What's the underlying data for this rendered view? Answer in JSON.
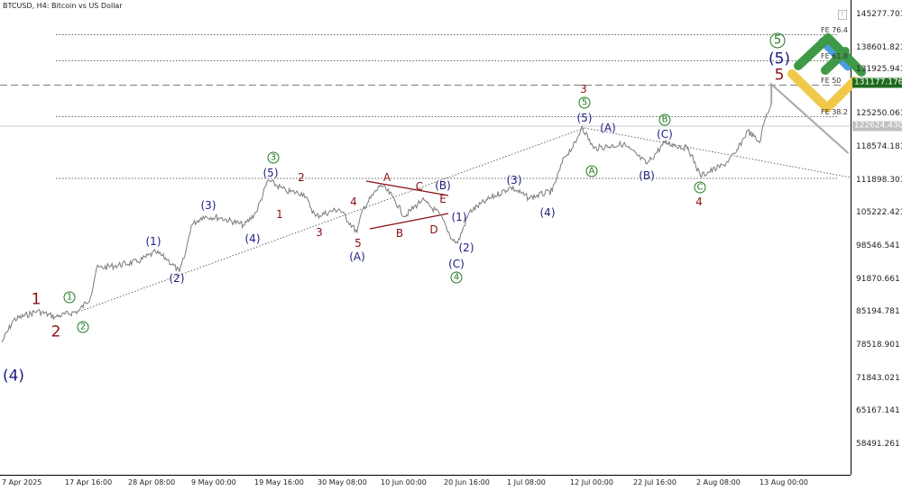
{
  "header": {
    "title": "BTCUSD, H4:  Bitcoin vs US Dollar",
    "toggle_label": "T"
  },
  "colors": {
    "price": "#7a7a7a",
    "wave_red": "#8b1010",
    "wave_navy": "#1c1c80",
    "wave_green": "#1f7a1f",
    "tag_green": "#1e6b1e",
    "tag_grey": "#c0c0c0",
    "logo_green": "#3f9a48",
    "logo_yellow": "#f0c94a",
    "logo_blue": "#4a9fe0"
  },
  "y_axis": {
    "labels": [
      "145277.701",
      "138601.821",
      "131925.941",
      "125250.061",
      "118574.181",
      "111898.301",
      "105222.421",
      "98546.541",
      "91870.661",
      "85194.781",
      "78518.901",
      "71843.021",
      "65167.141",
      "58491.261"
    ]
  },
  "x_axis": {
    "labels": [
      "7 Apr 2025",
      "17 Apr 16:00",
      "28 Apr 08:00",
      "9 May 00:00",
      "19 May 16:00",
      "30 May 08:00",
      "10 Jun 00:00",
      "20 Jun 16:00",
      "1 Jul 08:00",
      "12 Jul 00:00",
      "22 Jul 16:00",
      "2 Aug 08:00",
      "13 Aug 00:00"
    ]
  },
  "price_tags": {
    "fe50_level": "131177.176",
    "current": "122624.430"
  },
  "fib_levels": [
    {
      "label": "FE 76.4",
      "price": 141276
    },
    {
      "label": "FE 61.8",
      "price": 136000
    },
    {
      "label": "FE 50",
      "price": 131177.176
    },
    {
      "label": "FE 38.2",
      "price": 124722
    }
  ],
  "price_path": [
    [
      "2025-04-07",
      79100
    ],
    [
      "2025-04-09",
      83600
    ],
    [
      "2025-04-13",
      85400
    ],
    [
      "2025-04-16",
      84200
    ],
    [
      "2025-04-20",
      85400
    ],
    [
      "2025-04-22",
      88200
    ],
    [
      "2025-04-23",
      94000
    ],
    [
      "2025-04-26",
      94500
    ],
    [
      "2025-04-30",
      95400
    ],
    [
      "2025-05-03",
      97300
    ],
    [
      "2025-05-05",
      95800
    ],
    [
      "2025-05-07",
      93300
    ],
    [
      "2025-05-08",
      96900
    ],
    [
      "2025-05-09",
      102700
    ],
    [
      "2025-05-11",
      104500
    ],
    [
      "2025-05-14",
      104200
    ],
    [
      "2025-05-18",
      102700
    ],
    [
      "2025-05-20",
      105400
    ],
    [
      "2025-05-22",
      111800
    ],
    [
      "2025-05-25",
      109600
    ],
    [
      "2025-05-28",
      109100
    ],
    [
      "2025-05-30",
      104500
    ],
    [
      "2025-06-03",
      106000
    ],
    [
      "2025-06-06",
      101300
    ],
    [
      "2025-06-07",
      106000
    ],
    [
      "2025-06-10",
      110900
    ],
    [
      "2025-06-12",
      108500
    ],
    [
      "2025-06-14",
      104500
    ],
    [
      "2025-06-17",
      107800
    ],
    [
      "2025-06-20",
      104900
    ],
    [
      "2025-06-22",
      100000
    ],
    [
      "2025-06-23",
      99100
    ],
    [
      "2025-06-25",
      105400
    ],
    [
      "2025-06-28",
      107800
    ],
    [
      "2025-07-02",
      110400
    ],
    [
      "2025-07-05",
      108200
    ],
    [
      "2025-07-09",
      109600
    ],
    [
      "2025-07-11",
      116400
    ],
    [
      "2025-07-13",
      119400
    ],
    [
      "2025-07-14",
      122700
    ],
    [
      "2025-07-16",
      118200
    ],
    [
      "2025-07-21",
      119100
    ],
    [
      "2025-07-25",
      115100
    ],
    [
      "2025-07-28",
      119400
    ],
    [
      "2025-08-01",
      118200
    ],
    [
      "2025-08-03",
      112700
    ],
    [
      "2025-08-07",
      114900
    ],
    [
      "2025-08-09",
      117300
    ],
    [
      "2025-08-11",
      121800
    ],
    [
      "2025-08-13",
      119400
    ],
    [
      "2025-08-14",
      124500
    ],
    [
      "2025-08-15",
      127300
    ]
  ],
  "projection": [
    [
      "2025-08-15",
      131177
    ],
    [
      "2025-08-28",
      117265
    ]
  ],
  "wave_labels": [
    {
      "text": "1",
      "style": "red big"
    },
    {
      "text": "2",
      "style": "red big"
    },
    {
      "text": "1",
      "style": "grn circ"
    },
    {
      "text": "2",
      "style": "grn circ"
    },
    {
      "text": "(4)",
      "style": "navy big"
    },
    {
      "text": "(1)",
      "style": "navy"
    },
    {
      "text": "(2)",
      "style": "navy"
    },
    {
      "text": "(3)",
      "style": "navy"
    },
    {
      "text": "(4)",
      "style": "navy"
    },
    {
      "text": "(5)",
      "style": "navy"
    },
    {
      "text": "3",
      "style": "grn circ"
    },
    {
      "text": "2",
      "style": "red"
    },
    {
      "text": "1",
      "style": "red"
    },
    {
      "text": "3",
      "style": "red"
    },
    {
      "text": "4",
      "style": "red"
    },
    {
      "text": "5",
      "style": "red"
    },
    {
      "text": "(A)",
      "style": "navy"
    },
    {
      "text": "A",
      "style": "red"
    },
    {
      "text": "C",
      "style": "red"
    },
    {
      "text": "E",
      "style": "red"
    },
    {
      "text": "B",
      "style": "red"
    },
    {
      "text": "D",
      "style": "red"
    },
    {
      "text": "(B)",
      "style": "navy"
    },
    {
      "text": "(1)",
      "style": "navy"
    },
    {
      "text": "(2)",
      "style": "navy"
    },
    {
      "text": "(C)",
      "style": "navy"
    },
    {
      "text": "4",
      "style": "grn circ"
    },
    {
      "text": "(3)",
      "style": "navy"
    },
    {
      "text": "(4)",
      "style": "navy"
    },
    {
      "text": "3",
      "style": "red"
    },
    {
      "text": "5",
      "style": "grn circ"
    },
    {
      "text": "(5)",
      "style": "navy"
    },
    {
      "text": "(A)",
      "style": "navy"
    },
    {
      "text": "A",
      "style": "grn circ"
    },
    {
      "text": "B",
      "style": "grn circ"
    },
    {
      "text": "(C)",
      "style": "navy"
    },
    {
      "text": "(B)",
      "style": "navy"
    },
    {
      "text": "C",
      "style": "grn circ"
    },
    {
      "text": "4",
      "style": "red"
    },
    {
      "text": "5",
      "style": "grn circ big"
    },
    {
      "text": "(5)",
      "style": "navy big"
    },
    {
      "text": "5",
      "style": "red big"
    }
  ]
}
